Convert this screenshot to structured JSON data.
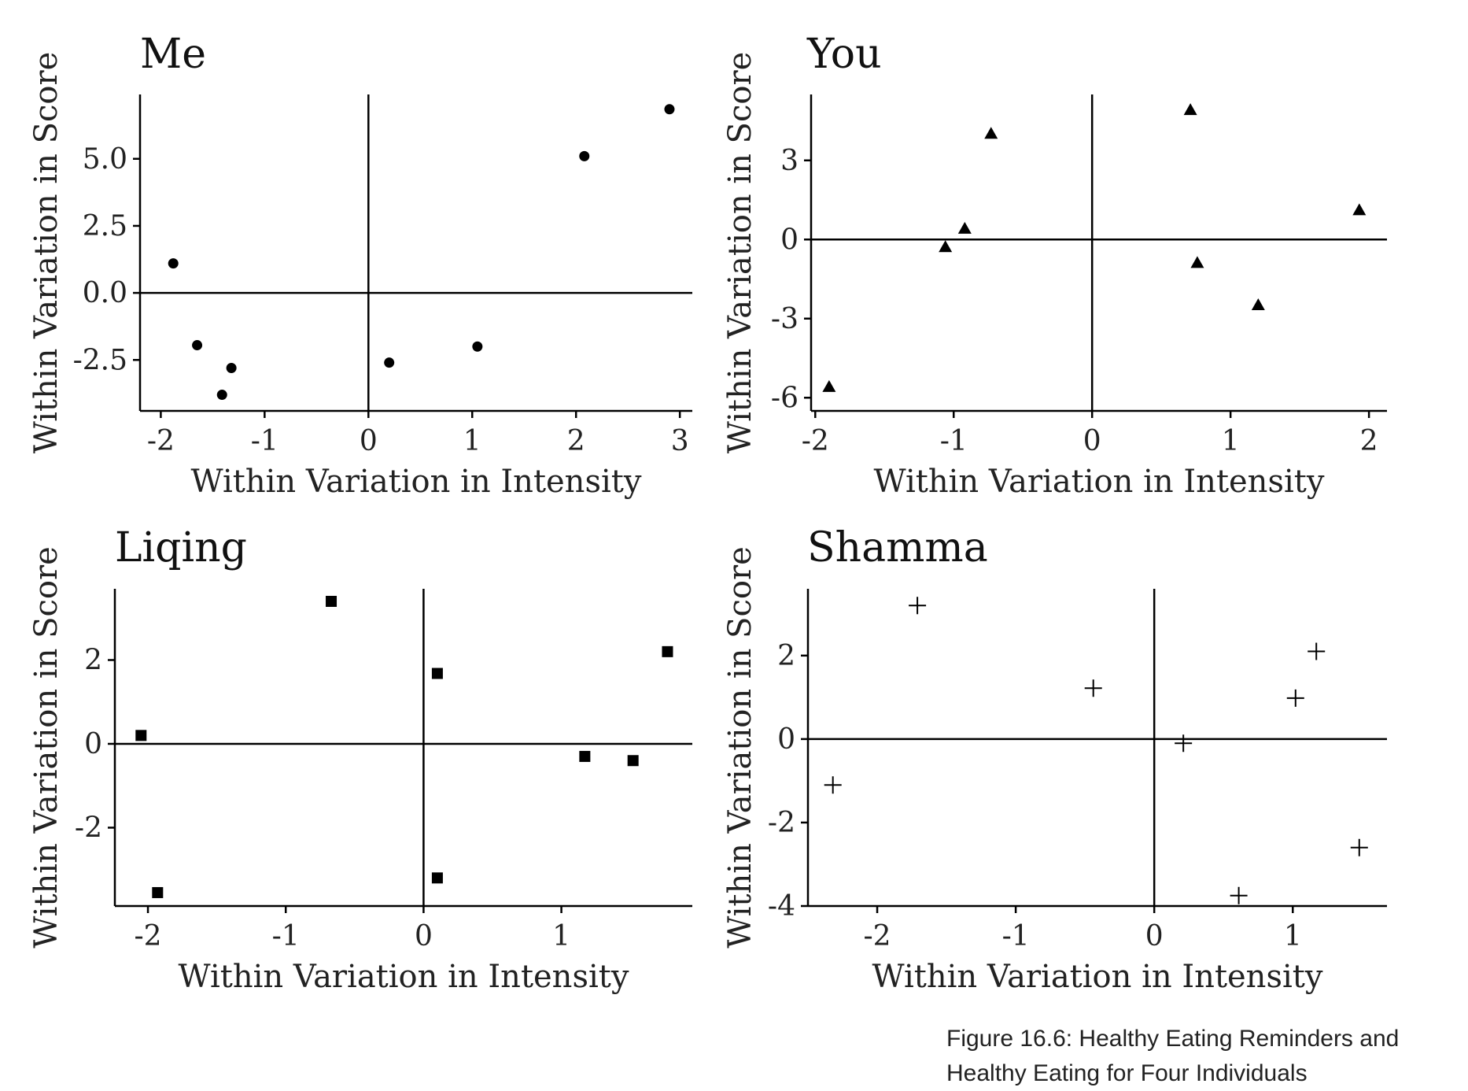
{
  "caption": "Figure 16.6: Healthy Eating Reminders and Healthy Eating for Four Individuals",
  "chart_data": [
    {
      "type": "scatter",
      "title": "Me",
      "xlabel": "Within Variation in Intensity",
      "ylabel": "Within Variation in Score",
      "marker": "circle",
      "xlim": [
        -2.2,
        3.12
      ],
      "ylim": [
        -4.4,
        7.4
      ],
      "xticks": [
        -2,
        -1,
        0,
        1,
        2,
        3
      ],
      "yticks": [
        -2.5,
        0.0,
        2.5,
        5.0
      ],
      "xtick_labels": [
        "-2",
        "-1",
        "0",
        "1",
        "2",
        "3"
      ],
      "ytick_labels": [
        "-2.5",
        "0.0",
        "2.5",
        "5.0"
      ],
      "points": [
        {
          "x": -1.88,
          "y": 1.1
        },
        {
          "x": -1.65,
          "y": -1.95
        },
        {
          "x": -1.32,
          "y": -2.8
        },
        {
          "x": -1.41,
          "y": -3.8
        },
        {
          "x": 0.2,
          "y": -2.6
        },
        {
          "x": 1.05,
          "y": -2.0
        },
        {
          "x": 2.08,
          "y": 5.1
        },
        {
          "x": 2.9,
          "y": 6.85
        }
      ],
      "grid": false,
      "zero_lines": true
    },
    {
      "type": "scatter",
      "title": "You",
      "xlabel": "Within Variation in Intensity",
      "ylabel": "Within Variation in Score",
      "marker": "triangle",
      "xlim": [
        -2.03,
        2.13
      ],
      "ylim": [
        -6.5,
        5.5
      ],
      "xticks": [
        -2,
        -1,
        0,
        1,
        2
      ],
      "yticks": [
        -6,
        -3,
        0,
        3
      ],
      "xtick_labels": [
        "-2",
        "-1",
        "0",
        "1",
        "2"
      ],
      "ytick_labels": [
        "-6",
        "-3",
        "0",
        "3"
      ],
      "points": [
        {
          "x": -1.9,
          "y": -5.6
        },
        {
          "x": -1.06,
          "y": -0.3
        },
        {
          "x": -0.92,
          "y": 0.4
        },
        {
          "x": -0.73,
          "y": 4.0
        },
        {
          "x": 0.71,
          "y": 4.9
        },
        {
          "x": 0.76,
          "y": -0.9
        },
        {
          "x": 1.2,
          "y": -2.5
        },
        {
          "x": 1.93,
          "y": 1.1
        }
      ],
      "grid": false,
      "zero_lines": true
    },
    {
      "type": "scatter",
      "title": "Liqing",
      "xlabel": "Within Variation in Intensity",
      "ylabel": "Within Variation in Score",
      "marker": "square",
      "xlim": [
        -2.24,
        1.95
      ],
      "ylim": [
        -3.87,
        3.7
      ],
      "xticks": [
        -2,
        -1,
        0,
        1
      ],
      "yticks": [
        -2,
        0,
        2
      ],
      "xtick_labels": [
        "-2",
        "-1",
        "0",
        "1"
      ],
      "ytick_labels": [
        "-2",
        "0",
        "2"
      ],
      "points": [
        {
          "x": -2.05,
          "y": 0.2
        },
        {
          "x": -1.93,
          "y": -3.55
        },
        {
          "x": -0.67,
          "y": 3.4
        },
        {
          "x": 0.1,
          "y": 1.68
        },
        {
          "x": 0.1,
          "y": -3.2
        },
        {
          "x": 1.17,
          "y": -0.3
        },
        {
          "x": 1.52,
          "y": -0.4
        },
        {
          "x": 1.77,
          "y": 2.2
        }
      ],
      "grid": false,
      "zero_lines": true
    },
    {
      "type": "scatter",
      "title": "Shamma",
      "xlabel": "Within Variation in Intensity",
      "ylabel": "Within Variation in Score",
      "marker": "plus",
      "xlim": [
        -2.5,
        1.68
      ],
      "ylim": [
        -4.0,
        3.6
      ],
      "xticks": [
        -2,
        -1,
        0,
        1
      ],
      "yticks": [
        -4,
        -2,
        0,
        2
      ],
      "xtick_labels": [
        "-2",
        "-1",
        "0",
        "1"
      ],
      "ytick_labels": [
        "-4",
        "-2",
        "0",
        "2"
      ],
      "points": [
        {
          "x": -2.32,
          "y": -1.1
        },
        {
          "x": -1.71,
          "y": 3.2
        },
        {
          "x": -0.44,
          "y": 1.22
        },
        {
          "x": 0.21,
          "y": -0.1
        },
        {
          "x": 0.61,
          "y": -3.75
        },
        {
          "x": 1.02,
          "y": 0.98
        },
        {
          "x": 1.17,
          "y": 2.1
        },
        {
          "x": 1.48,
          "y": -2.6
        }
      ],
      "grid": false,
      "zero_lines": true
    }
  ]
}
